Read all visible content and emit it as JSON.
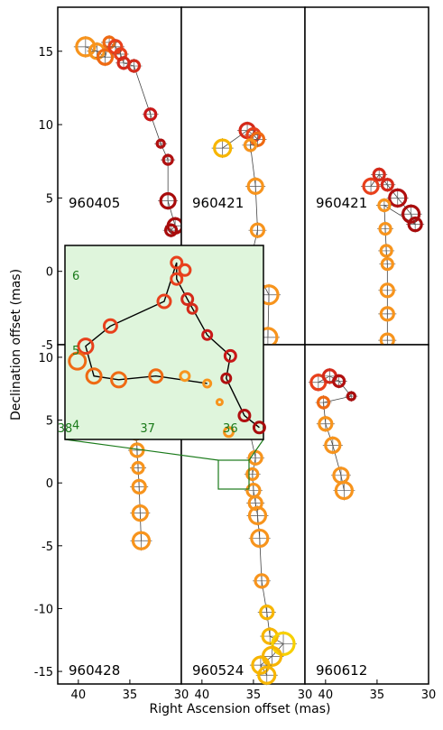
{
  "chart_data": {
    "type": "scatter",
    "xlabel": "Right Ascension offset (mas)",
    "ylabel": "Declination offset (mas)",
    "grid": false,
    "panels": [
      {
        "label": "960405",
        "xlim": [
          42,
          30
        ],
        "ylim": [
          -5,
          18
        ],
        "xticks": [],
        "yticks": [
          15,
          10,
          5,
          0,
          -5
        ],
        "points": [
          {
            "x": 39.3,
            "y": 15.3,
            "size": 10,
            "color": "#f7941d"
          },
          {
            "x": 38.2,
            "y": 15.0,
            "size": 8,
            "color": "#f7941d"
          },
          {
            "x": 37.4,
            "y": 14.6,
            "size": 8,
            "color": "#ef6a13"
          },
          {
            "x": 37.0,
            "y": 15.6,
            "size": 6,
            "color": "#ef6a13"
          },
          {
            "x": 36.4,
            "y": 15.3,
            "size": 7,
            "color": "#e8401c"
          },
          {
            "x": 35.9,
            "y": 14.8,
            "size": 6,
            "color": "#e8401c"
          },
          {
            "x": 35.6,
            "y": 14.2,
            "size": 6,
            "color": "#d42a1a"
          },
          {
            "x": 34.6,
            "y": 14.0,
            "size": 6,
            "color": "#d42a1a"
          },
          {
            "x": 33.0,
            "y": 10.7,
            "size": 6,
            "color": "#c81818"
          },
          {
            "x": 32.0,
            "y": 8.7,
            "size": 4,
            "color": "#b01010"
          },
          {
            "x": 31.3,
            "y": 7.6,
            "size": 5,
            "color": "#b01010"
          },
          {
            "x": 31.3,
            "y": 4.8,
            "size": 8,
            "color": "#a80c0c"
          },
          {
            "x": 30.6,
            "y": 3.1,
            "size": 8,
            "color": "#a80c0c"
          },
          {
            "x": 31.0,
            "y": 2.8,
            "size": 6,
            "color": "#a80c0c"
          }
        ]
      },
      {
        "label": "960421",
        "xlim": [
          42,
          30
        ],
        "ylim": [
          -5,
          18
        ],
        "xticks": [],
        "yticks": [],
        "points": [
          {
            "x": 38.0,
            "y": 8.4,
            "size": 9,
            "color": "#f7b500"
          },
          {
            "x": 35.6,
            "y": 9.6,
            "size": 8,
            "color": "#d42a1a"
          },
          {
            "x": 35.0,
            "y": 9.3,
            "size": 7,
            "color": "#e8401c"
          },
          {
            "x": 34.6,
            "y": 9.0,
            "size": 7,
            "color": "#ef6a13"
          },
          {
            "x": 35.3,
            "y": 8.6,
            "size": 6,
            "color": "#f7941d"
          },
          {
            "x": 34.8,
            "y": 5.8,
            "size": 8,
            "color": "#f7941d"
          },
          {
            "x": 34.6,
            "y": 2.8,
            "size": 7,
            "color": "#f7941d"
          },
          {
            "x": 35.1,
            "y": 1.3,
            "size": 5,
            "color": "#f7b500"
          },
          {
            "x": 34.7,
            "y": 0.0,
            "size": 3,
            "color": "#ef6a13"
          },
          {
            "x": 33.5,
            "y": -1.6,
            "size": 10,
            "color": "#f7941d"
          },
          {
            "x": 33.6,
            "y": -4.5,
            "size": 10,
            "color": "#f7941d"
          }
        ]
      },
      {
        "label": "960421",
        "xlim": [
          42,
          30
        ],
        "ylim": [
          -5,
          18
        ],
        "xticks": [],
        "yticks": [],
        "points": [
          {
            "x": 35.6,
            "y": 5.8,
            "size": 8,
            "color": "#e8401c"
          },
          {
            "x": 34.8,
            "y": 6.6,
            "size": 6,
            "color": "#d42a1a"
          },
          {
            "x": 34.0,
            "y": 5.9,
            "size": 6,
            "color": "#d42a1a"
          },
          {
            "x": 33.0,
            "y": 5.0,
            "size": 9,
            "color": "#b01010"
          },
          {
            "x": 31.7,
            "y": 3.9,
            "size": 9,
            "color": "#a80c0c"
          },
          {
            "x": 31.3,
            "y": 3.2,
            "size": 7,
            "color": "#a80c0c"
          },
          {
            "x": 34.3,
            "y": 4.5,
            "size": 6,
            "color": "#f7941d"
          },
          {
            "x": 34.2,
            "y": 2.9,
            "size": 6,
            "color": "#f7941d"
          },
          {
            "x": 34.1,
            "y": 1.4,
            "size": 6,
            "color": "#f7941d"
          },
          {
            "x": 34.0,
            "y": 0.5,
            "size": 6,
            "color": "#f7941d"
          },
          {
            "x": 34.0,
            "y": -1.3,
            "size": 7,
            "color": "#f7941d"
          },
          {
            "x": 34.0,
            "y": -2.9,
            "size": 7,
            "color": "#f7941d"
          },
          {
            "x": 34.0,
            "y": -4.7,
            "size": 7,
            "color": "#f7941d"
          }
        ]
      },
      {
        "label": "960428",
        "xlim": [
          42,
          30
        ],
        "ylim": [
          -16,
          11
        ],
        "xticks": [
          40,
          35,
          30
        ],
        "yticks": [
          10,
          5,
          0,
          -5,
          -10,
          -15
        ],
        "points": [
          {
            "x": 36.8,
            "y": 5.0,
            "size": 8,
            "color": "#e8401c"
          },
          {
            "x": 36.0,
            "y": 5.5,
            "size": 7,
            "color": "#ef6a13"
          },
          {
            "x": 35.0,
            "y": 5.2,
            "size": 7,
            "color": "#d42a1a"
          },
          {
            "x": 34.2,
            "y": 4.6,
            "size": 6,
            "color": "#b01010"
          },
          {
            "x": 34.4,
            "y": 3.9,
            "size": 6,
            "color": "#f7941d"
          },
          {
            "x": 34.3,
            "y": 2.6,
            "size": 7,
            "color": "#f7941d"
          },
          {
            "x": 34.2,
            "y": 1.2,
            "size": 6,
            "color": "#f7941d"
          },
          {
            "x": 34.1,
            "y": -0.3,
            "size": 7,
            "color": "#f7941d"
          },
          {
            "x": 34.0,
            "y": -2.4,
            "size": 8,
            "color": "#f7941d"
          },
          {
            "x": 33.9,
            "y": -4.6,
            "size": 9,
            "color": "#f7941d"
          }
        ]
      },
      {
        "label": "960524",
        "xlim": [
          42,
          30
        ],
        "ylim": [
          -16,
          11
        ],
        "xticks": [
          40,
          35,
          30
        ],
        "yticks": [],
        "points": [
          {
            "x": 37.6,
            "y": 5.0,
            "size": 8,
            "color": "#e8401c"
          },
          {
            "x": 36.7,
            "y": 4.6,
            "size": 7,
            "color": "#ef6a13"
          },
          {
            "x": 35.4,
            "y": 4.2,
            "size": 6,
            "color": "#d42a1a"
          },
          {
            "x": 34.8,
            "y": 2.0,
            "size": 7,
            "color": "#f7941d"
          },
          {
            "x": 35.1,
            "y": 0.7,
            "size": 6,
            "color": "#f7941d"
          },
          {
            "x": 35.0,
            "y": -0.6,
            "size": 7,
            "color": "#f7941d"
          },
          {
            "x": 34.8,
            "y": -1.6,
            "size": 7,
            "color": "#f7941d"
          },
          {
            "x": 34.6,
            "y": -2.6,
            "size": 9,
            "color": "#f7941d"
          },
          {
            "x": 34.4,
            "y": -4.4,
            "size": 9,
            "color": "#f7941d"
          },
          {
            "x": 34.2,
            "y": -7.8,
            "size": 7,
            "color": "#f7941d"
          },
          {
            "x": 33.7,
            "y": -10.3,
            "size": 7,
            "color": "#f7b500"
          },
          {
            "x": 33.4,
            "y": -12.2,
            "size": 8,
            "color": "#f7b500"
          },
          {
            "x": 32.1,
            "y": -12.8,
            "size": 12,
            "color": "#f7d000"
          },
          {
            "x": 33.2,
            "y": -13.8,
            "size": 10,
            "color": "#f7b500"
          },
          {
            "x": 34.3,
            "y": -14.5,
            "size": 9,
            "color": "#f7b500"
          },
          {
            "x": 33.7,
            "y": -15.3,
            "size": 9,
            "color": "#f7b500"
          }
        ]
      },
      {
        "label": "960612",
        "xlim": [
          42,
          30
        ],
        "ylim": [
          -16,
          11
        ],
        "xticks": [
          40,
          35,
          30
        ],
        "yticks": [],
        "points": [
          {
            "x": 40.7,
            "y": 8.0,
            "size": 8,
            "color": "#e8401c"
          },
          {
            "x": 39.6,
            "y": 8.5,
            "size": 7,
            "color": "#d42a1a"
          },
          {
            "x": 38.7,
            "y": 8.1,
            "size": 6,
            "color": "#b01010"
          },
          {
            "x": 37.5,
            "y": 6.9,
            "size": 4,
            "color": "#a80c0c"
          },
          {
            "x": 40.2,
            "y": 6.4,
            "size": 6,
            "color": "#ef6a13"
          },
          {
            "x": 40.0,
            "y": 4.7,
            "size": 7,
            "color": "#f7941d"
          },
          {
            "x": 39.3,
            "y": 3.0,
            "size": 8,
            "color": "#f7941d"
          },
          {
            "x": 38.5,
            "y": 0.6,
            "size": 8,
            "color": "#f7941d"
          },
          {
            "x": 38.2,
            "y": -0.6,
            "size": 9,
            "color": "#f7941d"
          }
        ]
      }
    ],
    "inset": {
      "xlim": [
        38,
        35.6
      ],
      "ylim": [
        3.8,
        6.4
      ],
      "xticks": [
        38,
        37,
        36
      ],
      "yticks": [
        6,
        5,
        4
      ],
      "background": "#dff5dc",
      "points": [
        {
          "x": 36.65,
          "y": 6.17,
          "size": 6,
          "color": "#e8401c"
        },
        {
          "x": 36.55,
          "y": 6.07,
          "size": 6,
          "color": "#e8401c"
        },
        {
          "x": 36.65,
          "y": 5.95,
          "size": 6,
          "color": "#e8401c"
        },
        {
          "x": 36.52,
          "y": 5.68,
          "size": 6,
          "color": "#d42a1a"
        },
        {
          "x": 36.46,
          "y": 5.55,
          "size": 5,
          "color": "#d42a1a"
        },
        {
          "x": 36.28,
          "y": 5.2,
          "size": 5,
          "color": "#c81818"
        },
        {
          "x": 36.0,
          "y": 4.92,
          "size": 6,
          "color": "#c81818"
        },
        {
          "x": 36.05,
          "y": 4.62,
          "size": 5,
          "color": "#b01010"
        },
        {
          "x": 35.83,
          "y": 4.12,
          "size": 6,
          "color": "#b01010"
        },
        {
          "x": 35.65,
          "y": 3.96,
          "size": 6,
          "color": "#a80c0c"
        },
        {
          "x": 36.8,
          "y": 5.65,
          "size": 7,
          "color": "#e8401c"
        },
        {
          "x": 37.45,
          "y": 5.32,
          "size": 7,
          "color": "#e8401c"
        },
        {
          "x": 37.75,
          "y": 5.05,
          "size": 8,
          "color": "#e8401c"
        },
        {
          "x": 37.85,
          "y": 4.85,
          "size": 9,
          "color": "#ef6a13"
        },
        {
          "x": 37.65,
          "y": 4.65,
          "size": 8,
          "color": "#ef6a13"
        },
        {
          "x": 37.35,
          "y": 4.6,
          "size": 8,
          "color": "#ef6a13"
        },
        {
          "x": 36.9,
          "y": 4.65,
          "size": 7,
          "color": "#ef6a13"
        },
        {
          "x": 36.55,
          "y": 4.65,
          "size": 5,
          "color": "#f7941d"
        },
        {
          "x": 36.28,
          "y": 4.55,
          "size": 4,
          "color": "#f7941d"
        },
        {
          "x": 36.13,
          "y": 4.3,
          "size": 3,
          "color": "#f7941d"
        },
        {
          "x": 36.02,
          "y": 3.9,
          "size": 5,
          "color": "#f7941d"
        }
      ],
      "path": [
        [
          36.65,
          6.17
        ],
        [
          36.65,
          5.95
        ],
        [
          36.52,
          5.68
        ],
        [
          36.28,
          5.2
        ],
        [
          36.0,
          4.92
        ],
        [
          36.05,
          4.62
        ],
        [
          35.83,
          4.12
        ],
        [
          35.65,
          3.96
        ]
      ],
      "path2": [
        [
          36.65,
          6.17
        ],
        [
          36.8,
          5.65
        ],
        [
          37.45,
          5.32
        ],
        [
          37.75,
          5.05
        ],
        [
          37.65,
          4.65
        ],
        [
          37.35,
          4.6
        ],
        [
          36.9,
          4.65
        ],
        [
          36.28,
          4.55
        ]
      ]
    }
  }
}
